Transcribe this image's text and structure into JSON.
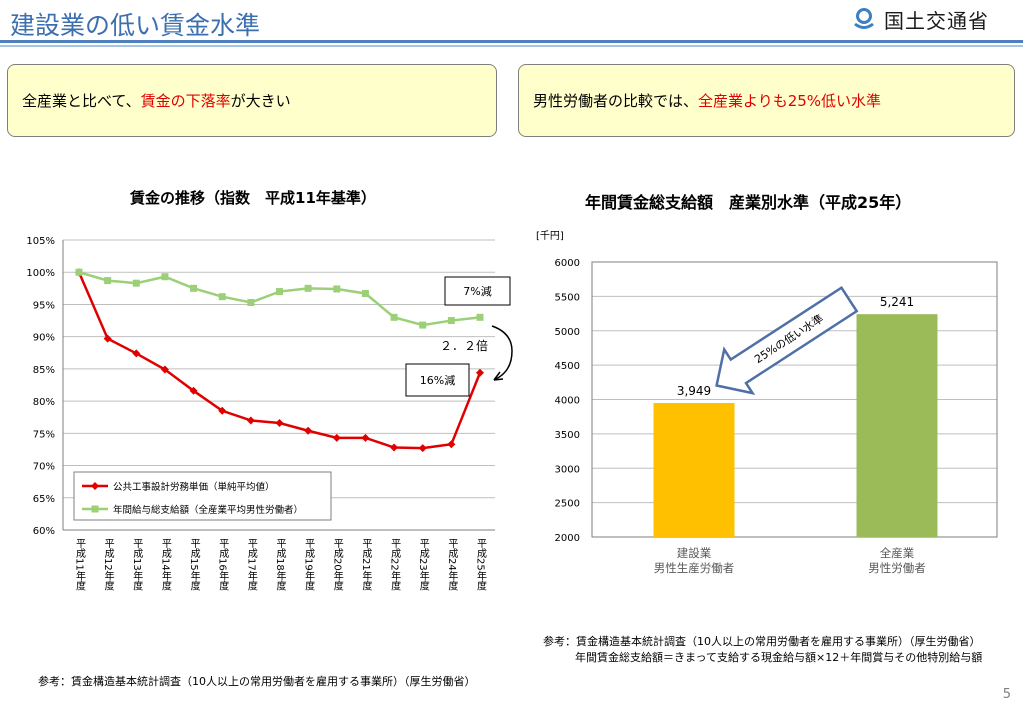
{
  "header": {
    "title": "建設業の低い賃金水準",
    "logo_text": "国土交通省"
  },
  "boxes": {
    "left": {
      "pre": "全産業と比べて、",
      "red": "賃金の下落率",
      "post": "が大きい"
    },
    "right": {
      "pre": "男性労働者の比較では、",
      "red": "全産業よりも25%低い水準",
      "post": ""
    }
  },
  "chart_data": [
    {
      "type": "line",
      "title": "賃金の推移（指数　平成11年基準）",
      "categories": [
        "平成11年度",
        "平成12年度",
        "平成13年度",
        "平成14年度",
        "平成15年度",
        "平成16年度",
        "平成17年度",
        "平成18年度",
        "平成19年度",
        "平成20年度",
        "平成21年度",
        "平成22年度",
        "平成23年度",
        "平成24年度",
        "平成25年度"
      ],
      "y_ticks": [
        "60%",
        "65%",
        "70%",
        "75%",
        "80%",
        "85%",
        "90%",
        "95%",
        "100%",
        "105%"
      ],
      "ylim": [
        60,
        105
      ],
      "series": [
        {
          "name": "公共工事設計労務単価（単純平均値）",
          "color": "#e00000",
          "marker": "diamond",
          "values": [
            100,
            89.7,
            87.4,
            84.9,
            81.6,
            78.5,
            77.0,
            76.6,
            75.4,
            74.3,
            74.3,
            72.8,
            72.7,
            73.3,
            84.4
          ]
        },
        {
          "name": "年間給与総支給額（全産業平均男性労働者）",
          "color": "#9bd077",
          "marker": "square",
          "values": [
            100,
            98.7,
            98.3,
            99.3,
            97.5,
            96.2,
            95.3,
            97.0,
            97.5,
            97.4,
            96.7,
            93.0,
            91.8,
            92.5,
            93.0
          ]
        }
      ],
      "legend_position": "bottom-left",
      "grid": true,
      "annotations": {
        "green_drop": "7%減",
        "red_drop": "16%減",
        "ratio": "２．２倍"
      }
    },
    {
      "type": "bar",
      "title": "年間賃金総支給額　産業別水準（平成25年）",
      "unit_label": "[千円]",
      "categories": [
        [
          "建設業",
          "男性生産労働者"
        ],
        [
          "全産業",
          "男性労働者"
        ]
      ],
      "values": [
        3949,
        5241
      ],
      "value_labels": [
        "3,949",
        "5,241"
      ],
      "bar_colors": [
        "#ffc000",
        "#9bbb59"
      ],
      "y_ticks": [
        "2000",
        "2500",
        "3000",
        "3500",
        "4000",
        "4500",
        "5000",
        "5500",
        "6000"
      ],
      "ylim": [
        2000,
        6000
      ],
      "grid": true,
      "annotation": "25%の低い水準"
    }
  ],
  "references": {
    "right_line1": "参考：賃金構造基本統計調査（10人以上の常用労働者を雇用する事業所）（厚生労働省）",
    "right_line2": "年間賃金総支給額＝きまって支給する現金給与額×12＋年間賞与その他特別給与額",
    "left": "参考：賃金構造基本統計調査（10人以上の常用労働者を雇用する事業所）（厚生労働省）"
  },
  "page_number": "5"
}
